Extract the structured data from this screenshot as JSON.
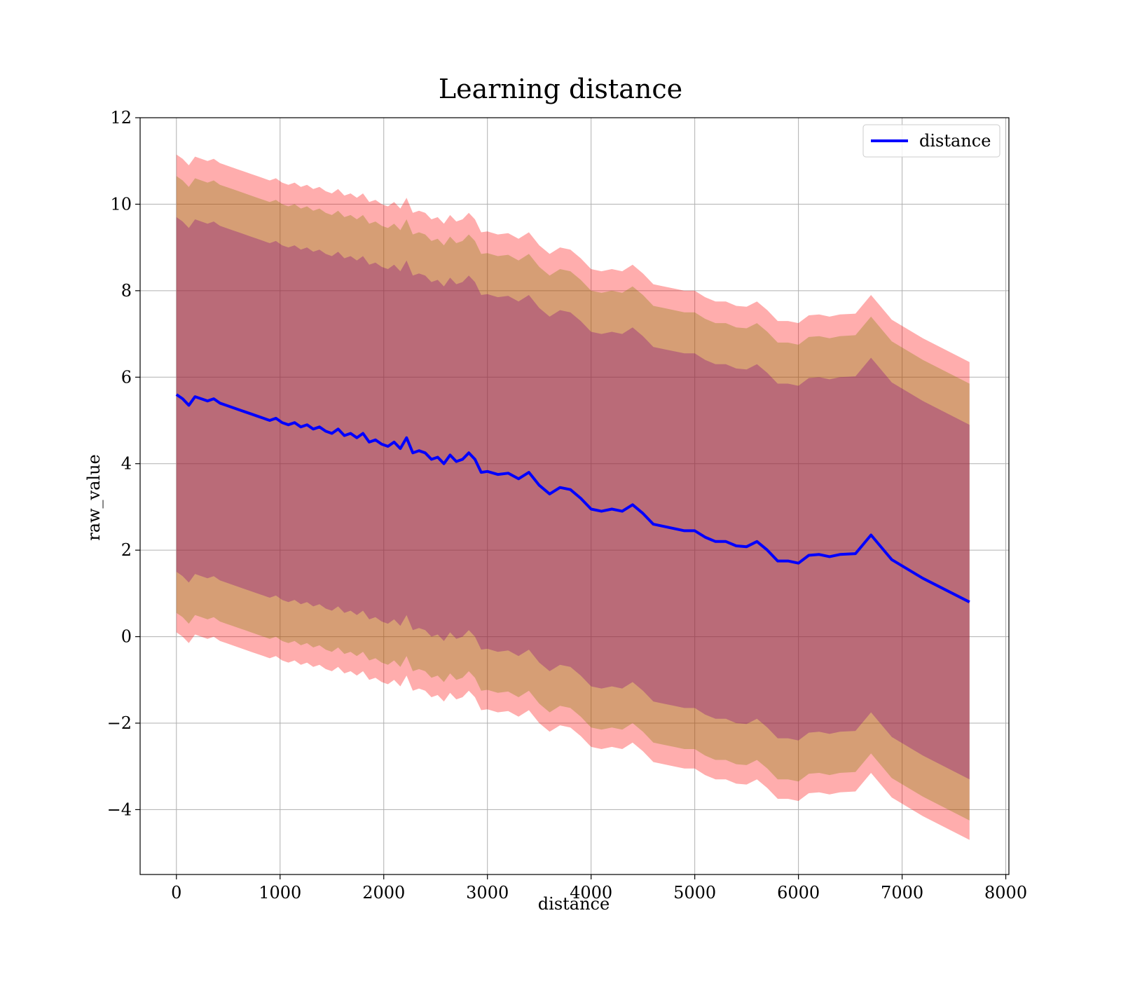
{
  "chart_data": {
    "type": "line",
    "title": "Learning distance",
    "xlabel": "distance",
    "ylabel": "raw_value",
    "xlim": [
      -350,
      8030
    ],
    "ylim": [
      -5.5,
      12
    ],
    "xticks": [
      0,
      1000,
      2000,
      3000,
      4000,
      5000,
      6000,
      7000,
      8000
    ],
    "yticks": [
      -4,
      -2,
      0,
      2,
      4,
      6,
      8,
      10,
      12
    ],
    "grid": true,
    "legend_position": "top-right",
    "series": [
      {
        "name": "distance",
        "color": "#0000ff",
        "x": [
          0,
          60,
          120,
          180,
          240,
          300,
          360,
          420,
          480,
          540,
          600,
          660,
          720,
          780,
          840,
          900,
          960,
          1020,
          1080,
          1140,
          1200,
          1260,
          1320,
          1380,
          1440,
          1500,
          1560,
          1620,
          1680,
          1740,
          1800,
          1860,
          1920,
          1980,
          2040,
          2100,
          2160,
          2220,
          2280,
          2340,
          2400,
          2460,
          2520,
          2580,
          2640,
          2700,
          2760,
          2820,
          2880,
          2940,
          3000,
          3100,
          3200,
          3300,
          3400,
          3500,
          3600,
          3700,
          3800,
          3900,
          4000,
          4100,
          4200,
          4300,
          4400,
          4500,
          4600,
          4700,
          4800,
          4900,
          5000,
          5100,
          5200,
          5300,
          5400,
          5500,
          5600,
          5700,
          5800,
          5900,
          6000,
          6100,
          6200,
          6300,
          6400,
          6550,
          6700,
          6900,
          7200,
          7650
        ],
        "y": [
          5.6,
          5.5,
          5.35,
          5.55,
          5.5,
          5.45,
          5.5,
          5.4,
          5.35,
          5.3,
          5.25,
          5.2,
          5.15,
          5.1,
          5.05,
          5.0,
          5.05,
          4.95,
          4.9,
          4.95,
          4.85,
          4.9,
          4.8,
          4.85,
          4.75,
          4.7,
          4.8,
          4.65,
          4.7,
          4.6,
          4.7,
          4.5,
          4.55,
          4.45,
          4.4,
          4.5,
          4.35,
          4.6,
          4.25,
          4.3,
          4.25,
          4.1,
          4.15,
          4.0,
          4.2,
          4.05,
          4.1,
          4.25,
          4.1,
          3.8,
          3.82,
          3.75,
          3.78,
          3.65,
          3.8,
          3.5,
          3.3,
          3.45,
          3.4,
          3.2,
          2.95,
          2.9,
          2.95,
          2.9,
          3.05,
          2.85,
          2.6,
          2.55,
          2.5,
          2.45,
          2.45,
          2.3,
          2.2,
          2.2,
          2.1,
          2.08,
          2.2,
          2.0,
          1.75,
          1.75,
          1.7,
          1.88,
          1.9,
          1.85,
          1.9,
          1.92,
          2.35,
          1.78,
          1.35,
          0.8
        ],
        "bands": [
          {
            "color": "#ff0000",
            "opacity": 0.32,
            "offset_upper": 5.55,
            "offset_lower": 5.5
          },
          {
            "color": "#808000",
            "opacity": 0.32,
            "offset_upper": 5.05,
            "offset_lower": 5.05
          },
          {
            "color": "#7f007f",
            "opacity": 0.32,
            "offset_upper": 4.1,
            "offset_lower": 4.1
          }
        ]
      }
    ]
  }
}
